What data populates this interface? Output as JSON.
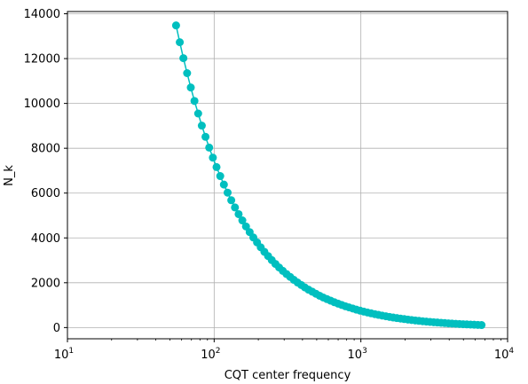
{
  "chart_data": {
    "type": "line",
    "xlabel": "CQT center frequency",
    "ylabel": "N_k",
    "xscale": "log",
    "xlim": [
      10,
      10000
    ],
    "ylim": [
      -500,
      14100
    ],
    "grid": true,
    "x_ticks": [
      {
        "value": 10,
        "base": "10",
        "exp": "1"
      },
      {
        "value": 100,
        "base": "10",
        "exp": "2"
      },
      {
        "value": 1000,
        "base": "10",
        "exp": "3"
      },
      {
        "value": 10000,
        "base": "10",
        "exp": "4"
      }
    ],
    "y_ticks": [
      {
        "value": 0,
        "label": "0"
      },
      {
        "value": 2000,
        "label": "2000"
      },
      {
        "value": 4000,
        "label": "4000"
      },
      {
        "value": 6000,
        "label": "6000"
      },
      {
        "value": 8000,
        "label": "8000"
      },
      {
        "value": 10000,
        "label": "10000"
      },
      {
        "value": 12000,
        "label": "12000"
      },
      {
        "value": 14000,
        "label": "14000"
      }
    ],
    "series": [
      {
        "color": "#00bfbf",
        "marker": "circle",
        "x": [
          55,
          58.3,
          61.7,
          65.4,
          69.3,
          73.4,
          77.8,
          82.4,
          87.3,
          92.5,
          98,
          103.8,
          110,
          116.5,
          123.5,
          130.8,
          138.6,
          146.8,
          155.6,
          164.8,
          174.6,
          185,
          196,
          207.7,
          220,
          233.1,
          246.9,
          261.6,
          277.2,
          293.7,
          311.1,
          329.6,
          349.2,
          370,
          392,
          415.3,
          440,
          466.2,
          493.9,
          523.3,
          554.4,
          587.3,
          622.3,
          659.3,
          698.5,
          740,
          784,
          830.6,
          880,
          932.3,
          987.8,
          1046.5,
          1108.7,
          1174.7,
          1244.5,
          1318.5,
          1396.9,
          1480,
          1568,
          1661.2,
          1760,
          1864.7,
          1975.5,
          2093,
          2217.5,
          2349.3,
          2489,
          2637,
          2793.8,
          2960,
          3136,
          3322.4,
          3520,
          3729.3,
          3951.1,
          4186,
          4434.9,
          4698.6,
          4978,
          5274,
          5587.7,
          5919.9,
          6271.9,
          6644.9
        ],
        "y": [
          13480,
          12730,
          12020,
          11350,
          10710,
          10110,
          9550,
          9010,
          8510,
          8030,
          7580,
          7160,
          6760,
          6380,
          6020,
          5680,
          5360,
          5060,
          4780,
          4510,
          4260,
          4020,
          3800,
          3580,
          3380,
          3190,
          3010,
          2840,
          2680,
          2530,
          2390,
          2260,
          2130,
          2010,
          1900,
          1790,
          1690,
          1600,
          1510,
          1420,
          1340,
          1270,
          1200,
          1130,
          1070,
          1010,
          950,
          900,
          850,
          800,
          755,
          712,
          672,
          635,
          599,
          566,
          534,
          504,
          476,
          449,
          424,
          400,
          378,
          357,
          337,
          318,
          300,
          283,
          267,
          252,
          238,
          225,
          212,
          200,
          189,
          178,
          168,
          159,
          150,
          142,
          134,
          126,
          119,
          112
        ]
      }
    ]
  }
}
